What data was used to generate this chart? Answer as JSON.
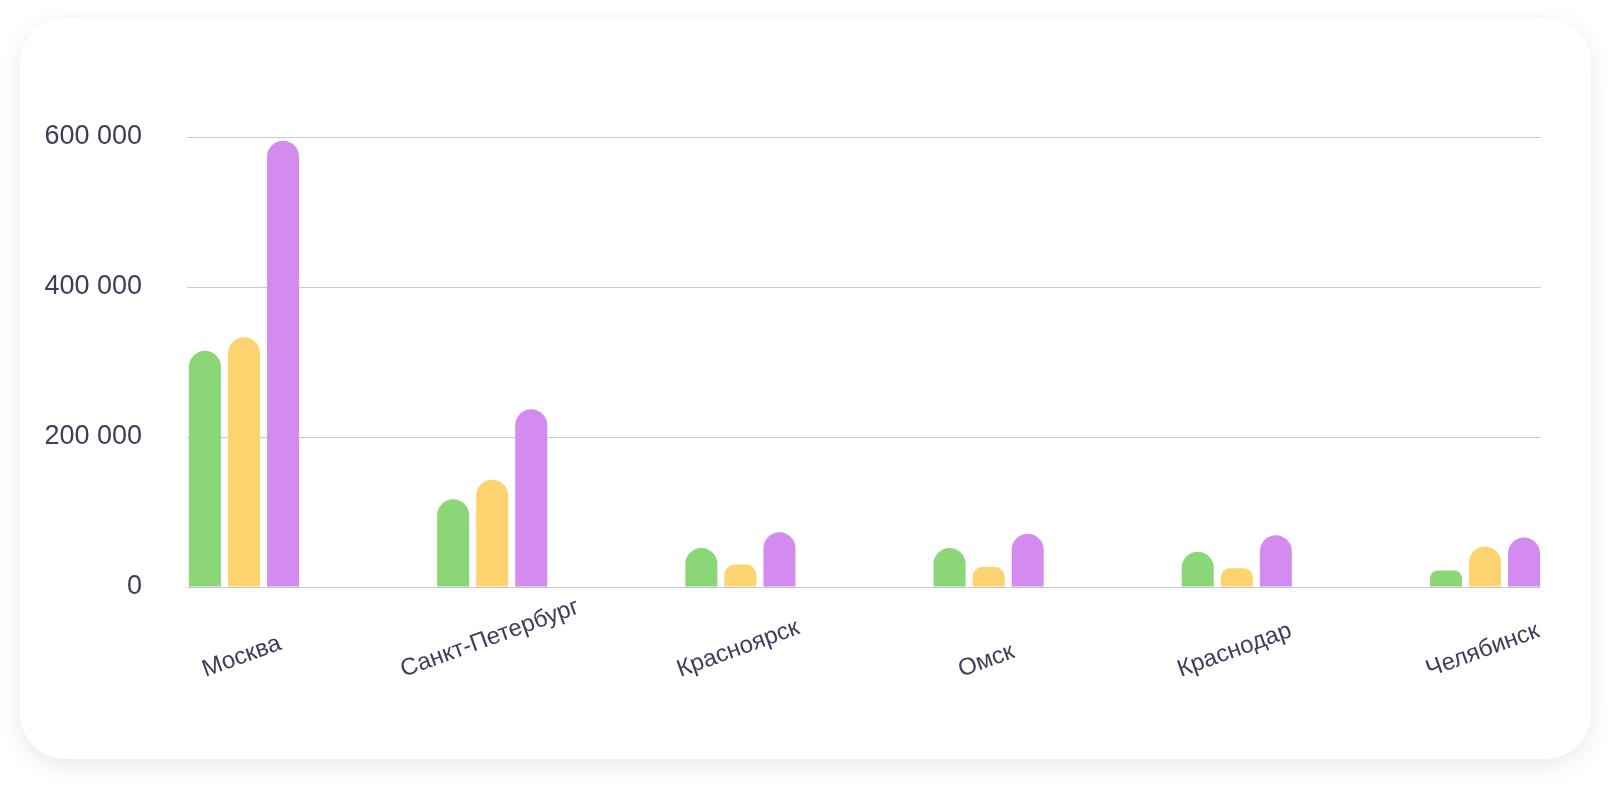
{
  "chart_data": {
    "type": "bar",
    "categories": [
      "Москва",
      "Санкт-Петербург",
      "Красноярск",
      "Омск",
      "Краснодар",
      "Челябинск"
    ],
    "series": [
      {
        "color": "#8bd676",
        "values": [
          315000,
          117000,
          52000,
          52000,
          47000,
          22000
        ]
      },
      {
        "color": "#fdd36f",
        "values": [
          333000,
          143000,
          30000,
          27000,
          25000,
          54000
        ]
      },
      {
        "color": "#d38bf0",
        "values": [
          595000,
          237000,
          73000,
          71000,
          69000,
          66000
        ]
      }
    ],
    "ylim": [
      0,
      600000
    ],
    "yticks": [
      0,
      {
        "value": 200000,
        "label": "200 000"
      },
      {
        "value": 400000,
        "label": "400 000"
      },
      {
        "value": 600000,
        "label": "600 000"
      }
    ],
    "grid": "y"
  }
}
